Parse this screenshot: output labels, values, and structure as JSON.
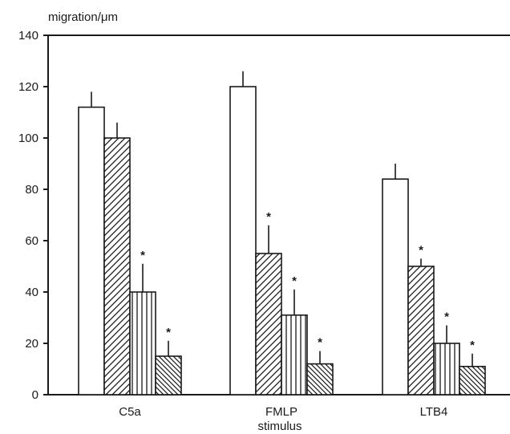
{
  "chart_data": {
    "type": "bar",
    "ylabel": "migration/μm",
    "xlabel": "stimulus",
    "ylim": [
      0,
      140
    ],
    "yticks": [
      "0",
      "20",
      "40",
      "60",
      "80",
      "100",
      "120",
      "140"
    ],
    "categories": [
      "C5a",
      "FMLP",
      "LTB4"
    ],
    "grid": false,
    "legend": "none",
    "series": [
      {
        "pattern": "open",
        "values": [
          112,
          120,
          84
        ],
        "errors": [
          6,
          6,
          6
        ],
        "significant": [
          false,
          false,
          false
        ]
      },
      {
        "pattern": "diagonal-up",
        "values": [
          100,
          55,
          50
        ],
        "errors": [
          6,
          11,
          3
        ],
        "significant": [
          false,
          true,
          true
        ]
      },
      {
        "pattern": "vertical",
        "values": [
          40,
          31,
          20
        ],
        "errors": [
          11,
          10,
          7
        ],
        "significant": [
          true,
          true,
          true
        ]
      },
      {
        "pattern": "diagonal-down",
        "values": [
          15,
          12,
          11
        ],
        "errors": [
          6,
          5,
          5
        ],
        "significant": [
          true,
          true,
          true
        ]
      }
    ],
    "significance_marker": "*"
  }
}
